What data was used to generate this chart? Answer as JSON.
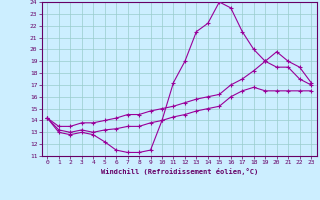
{
  "xlabel": "Windchill (Refroidissement éolien,°C)",
  "bg_color": "#cceeff",
  "line_color": "#990099",
  "grid_color": "#99cccc",
  "xlim": [
    -0.5,
    23.5
  ],
  "ylim": [
    11,
    24
  ],
  "xticks": [
    0,
    1,
    2,
    3,
    4,
    5,
    6,
    7,
    8,
    9,
    10,
    11,
    12,
    13,
    14,
    15,
    16,
    17,
    18,
    19,
    20,
    21,
    22,
    23
  ],
  "yticks": [
    11,
    12,
    13,
    14,
    15,
    16,
    17,
    18,
    19,
    20,
    21,
    22,
    23,
    24
  ],
  "series1_x": [
    0,
    1,
    2,
    3,
    4,
    5,
    6,
    7,
    8,
    9,
    10,
    11,
    12,
    13,
    14,
    15,
    16,
    17,
    18,
    19,
    20,
    21,
    22,
    23
  ],
  "series1_y": [
    14.2,
    13.0,
    12.8,
    13.0,
    12.8,
    12.2,
    11.5,
    11.3,
    11.3,
    11.5,
    14.0,
    17.2,
    19.0,
    21.5,
    22.2,
    24.0,
    23.5,
    21.5,
    20.0,
    19.0,
    18.5,
    18.5,
    17.5,
    17.0
  ],
  "series2_x": [
    0,
    1,
    2,
    3,
    4,
    5,
    6,
    7,
    8,
    9,
    10,
    11,
    12,
    13,
    14,
    15,
    16,
    17,
    18,
    19,
    20,
    21,
    22,
    23
  ],
  "series2_y": [
    14.2,
    13.5,
    13.5,
    13.8,
    13.8,
    14.0,
    14.2,
    14.5,
    14.5,
    14.8,
    15.0,
    15.2,
    15.5,
    15.8,
    16.0,
    16.2,
    17.0,
    17.5,
    18.2,
    19.0,
    19.8,
    19.0,
    18.5,
    17.2
  ],
  "series3_x": [
    0,
    1,
    2,
    3,
    4,
    5,
    6,
    7,
    8,
    9,
    10,
    11,
    12,
    13,
    14,
    15,
    16,
    17,
    18,
    19,
    20,
    21,
    22,
    23
  ],
  "series3_y": [
    14.2,
    13.2,
    13.0,
    13.2,
    13.0,
    13.2,
    13.3,
    13.5,
    13.5,
    13.8,
    14.0,
    14.3,
    14.5,
    14.8,
    15.0,
    15.2,
    16.0,
    16.5,
    16.8,
    16.5,
    16.5,
    16.5,
    16.5,
    16.5
  ]
}
